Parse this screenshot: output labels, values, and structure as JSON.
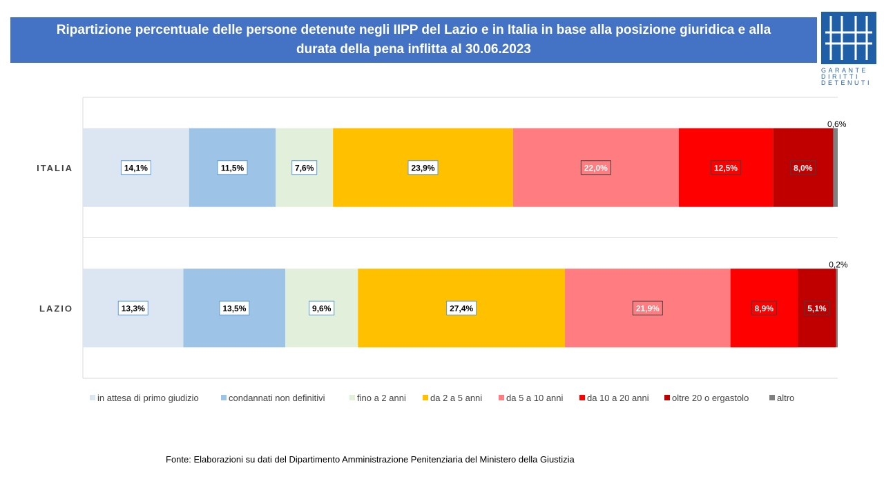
{
  "header": {
    "title_line1": "Ripartizione percentuale delle persone detenute negli IIPP del Lazio e in Italia in base alla posizione giuridica e alla",
    "title_line2": "durata della pena inflitta al 30.06.2023"
  },
  "logo": {
    "lines": [
      "GARANTE",
      "DIRITTI",
      "DETENUTI"
    ],
    "color": "#1f5fa8"
  },
  "source": "Fonte:  Elaborazioni su dati del Dipartimento  Amministrazione  Penitenziaria del Ministero della Giustizia",
  "chart_data": {
    "type": "bar",
    "orientation": "horizontal",
    "stacked": true,
    "percent_stacked": true,
    "title": "",
    "xlabel": "",
    "ylabel": "",
    "xlim": [
      0,
      100
    ],
    "categories": [
      "ITALIA",
      "LAZIO"
    ],
    "series": [
      {
        "name": "in attesa di primo giudizio",
        "color": "#dce6f2",
        "label_color": "#000000",
        "values": [
          14.1,
          13.3
        ],
        "labels": [
          "14,1%",
          "13,3%"
        ]
      },
      {
        "name": "condannati non definitivi",
        "color": "#9dc3e6",
        "label_color": "#000000",
        "values": [
          11.5,
          13.5
        ],
        "labels": [
          "11,5%",
          "13,5%"
        ]
      },
      {
        "name": "fino a 2 anni",
        "color": "#e2efda",
        "label_color": "#000000",
        "values": [
          7.6,
          9.6
        ],
        "labels": [
          "7,6%",
          "9,6%"
        ]
      },
      {
        "name": "da 2 a 5 anni",
        "color": "#ffc000",
        "label_color": "#000000",
        "values": [
          23.9,
          27.4
        ],
        "labels": [
          "23,9%",
          "27,4%"
        ]
      },
      {
        "name": "da 5 a 10 anni",
        "color": "#ff7c80",
        "label_color": "#ffffff",
        "values": [
          22.0,
          21.9
        ],
        "labels": [
          "22,0%",
          "21,9%"
        ]
      },
      {
        "name": "da 10 a 20 anni",
        "color": "#ff0000",
        "label_color": "#ffffff",
        "values": [
          12.5,
          8.9
        ],
        "labels": [
          "12,5%",
          "8,9%"
        ]
      },
      {
        "name": "oltre 20 o ergastolo",
        "color": "#c00000",
        "label_color": "#ffffff",
        "values": [
          8.0,
          5.1
        ],
        "labels": [
          "8,0%",
          "5,1%"
        ]
      },
      {
        "name": "altro",
        "color": "#7f7f7f",
        "label_color": "#000000",
        "values": [
          0.6,
          0.2
        ],
        "labels": [
          "0,6%",
          "0,2%"
        ]
      }
    ],
    "legend_position": "bottom",
    "grid": false
  }
}
